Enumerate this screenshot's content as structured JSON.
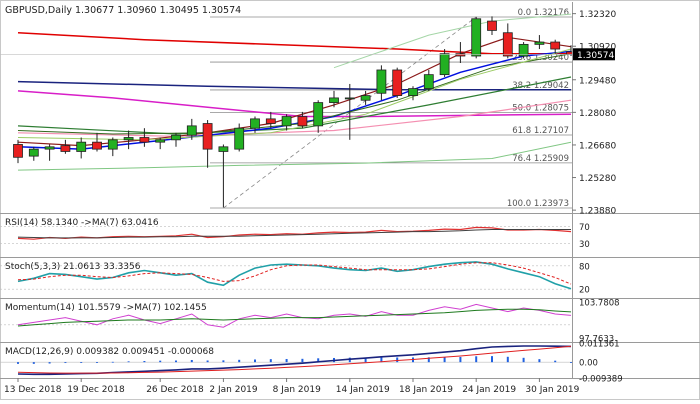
{
  "chart_data": {
    "type": "candlestick",
    "instrument": "GBPUSD,Daily",
    "header_ohlc": "1.30677 1.30960 1.30495 1.30574",
    "price_axis": {
      "ylim": [
        1.238,
        1.3282
      ],
      "ticks": [
        "1.32320",
        "1.30920",
        "1.29480",
        "1.28080",
        "1.26680",
        "1.25280",
        "1.23880"
      ],
      "current_price": "1.30574"
    },
    "x_labels": [
      "13 Dec 2018",
      "19 Dec 2018",
      "26 Dec 2018",
      "2 Jan 2019",
      "8 Jan 2019",
      "14 Jan 2019",
      "18 Jan 2019",
      "24 Jan 2019",
      "30 Jan 2019"
    ],
    "x_label_index": [
      0,
      4,
      9,
      13,
      17,
      21,
      25,
      29,
      33
    ],
    "candles": [
      {
        "o": 1.267,
        "h": 1.269,
        "l": 1.259,
        "c": 1.2615
      },
      {
        "o": 1.262,
        "h": 1.266,
        "l": 1.26,
        "c": 1.265
      },
      {
        "o": 1.265,
        "h": 1.267,
        "l": 1.26,
        "c": 1.266
      },
      {
        "o": 1.2665,
        "h": 1.269,
        "l": 1.263,
        "c": 1.264
      },
      {
        "o": 1.264,
        "h": 1.27,
        "l": 1.261,
        "c": 1.268
      },
      {
        "o": 1.268,
        "h": 1.272,
        "l": 1.264,
        "c": 1.265
      },
      {
        "o": 1.265,
        "h": 1.27,
        "l": 1.262,
        "c": 1.269
      },
      {
        "o": 1.269,
        "h": 1.273,
        "l": 1.265,
        "c": 1.27
      },
      {
        "o": 1.27,
        "h": 1.274,
        "l": 1.266,
        "c": 1.268
      },
      {
        "o": 1.268,
        "h": 1.27,
        "l": 1.265,
        "c": 1.269
      },
      {
        "o": 1.269,
        "h": 1.272,
        "l": 1.266,
        "c": 1.271
      },
      {
        "o": 1.271,
        "h": 1.278,
        "l": 1.269,
        "c": 1.275
      },
      {
        "o": 1.276,
        "h": 1.2775,
        "l": 1.257,
        "c": 1.265
      },
      {
        "o": 1.264,
        "h": 1.267,
        "l": 1.24,
        "c": 1.266
      },
      {
        "o": 1.265,
        "h": 1.276,
        "l": 1.264,
        "c": 1.274
      },
      {
        "o": 1.274,
        "h": 1.279,
        "l": 1.272,
        "c": 1.278
      },
      {
        "o": 1.278,
        "h": 1.281,
        "l": 1.274,
        "c": 1.276
      },
      {
        "o": 1.275,
        "h": 1.28,
        "l": 1.273,
        "c": 1.279
      },
      {
        "o": 1.279,
        "h": 1.281,
        "l": 1.274,
        "c": 1.275
      },
      {
        "o": 1.275,
        "h": 1.286,
        "l": 1.272,
        "c": 1.285
      },
      {
        "o": 1.285,
        "h": 1.29,
        "l": 1.283,
        "c": 1.287
      },
      {
        "o": 1.287,
        "h": 1.293,
        "l": 1.269,
        "c": 1.287
      },
      {
        "o": 1.286,
        "h": 1.29,
        "l": 1.284,
        "c": 1.288
      },
      {
        "o": 1.289,
        "h": 1.301,
        "l": 1.286,
        "c": 1.299
      },
      {
        "o": 1.299,
        "h": 1.3,
        "l": 1.287,
        "c": 1.288
      },
      {
        "o": 1.288,
        "h": 1.292,
        "l": 1.286,
        "c": 1.291
      },
      {
        "o": 1.291,
        "h": 1.299,
        "l": 1.29,
        "c": 1.297
      },
      {
        "o": 1.297,
        "h": 1.308,
        "l": 1.296,
        "c": 1.306
      },
      {
        "o": 1.306,
        "h": 1.311,
        "l": 1.302,
        "c": 1.305
      },
      {
        "o": 1.305,
        "h": 1.3218,
        "l": 1.304,
        "c": 1.321
      },
      {
        "o": 1.32,
        "h": 1.322,
        "l": 1.314,
        "c": 1.316
      },
      {
        "o": 1.315,
        "h": 1.319,
        "l": 1.304,
        "c": 1.305
      },
      {
        "o": 1.305,
        "h": 1.311,
        "l": 1.304,
        "c": 1.31
      },
      {
        "o": 1.31,
        "h": 1.314,
        "l": 1.308,
        "c": 1.311
      },
      {
        "o": 1.311,
        "h": 1.312,
        "l": 1.306,
        "c": 1.308
      },
      {
        "o": 1.3068,
        "h": 1.3096,
        "l": 1.305,
        "c": 1.3057
      }
    ],
    "lines": [
      {
        "name": "ma-red-long",
        "color": "#e00000",
        "width": 1.5,
        "points": [
          [
            0,
            1.315
          ],
          [
            8,
            1.312
          ],
          [
            16,
            1.31
          ],
          [
            24,
            1.308
          ],
          [
            30,
            1.306
          ],
          [
            35,
            1.306
          ]
        ]
      },
      {
        "name": "ma-navy",
        "color": "#1a237e",
        "width": 1.5,
        "points": [
          [
            0,
            1.294
          ],
          [
            12,
            1.292
          ],
          [
            24,
            1.2905
          ],
          [
            35,
            1.2905
          ]
        ]
      },
      {
        "name": "ma-magenta",
        "color": "#d81ec8",
        "width": 1.5,
        "points": [
          [
            0,
            1.29
          ],
          [
            6,
            1.287
          ],
          [
            12,
            1.283
          ],
          [
            18,
            1.279
          ],
          [
            22,
            1.279
          ],
          [
            35,
            1.28
          ]
        ]
      },
      {
        "name": "ma-green",
        "color": "#2e7d32",
        "width": 1.2,
        "points": [
          [
            0,
            1.275
          ],
          [
            10,
            1.2715
          ],
          [
            18,
            1.274
          ],
          [
            26,
            1.284
          ],
          [
            35,
            1.296
          ]
        ]
      },
      {
        "name": "ma-pink",
        "color": "#f48fb1",
        "width": 1.2,
        "points": [
          [
            0,
            1.272
          ],
          [
            10,
            1.2705
          ],
          [
            20,
            1.273
          ],
          [
            28,
            1.279
          ],
          [
            35,
            1.286
          ]
        ]
      },
      {
        "name": "ma-lightgreen",
        "color": "#81c784",
        "width": 1.0,
        "points": [
          [
            0,
            1.256
          ],
          [
            8,
            1.257
          ],
          [
            14,
            1.258
          ],
          [
            22,
            1.259
          ],
          [
            30,
            1.261
          ],
          [
            35,
            1.268
          ]
        ]
      },
      {
        "name": "ma-blue",
        "color": "#0010e0",
        "width": 1.5,
        "points": [
          [
            0,
            1.266
          ],
          [
            4,
            1.265
          ],
          [
            8,
            1.268
          ],
          [
            12,
            1.271
          ],
          [
            16,
            1.274
          ],
          [
            20,
            1.279
          ],
          [
            24,
            1.288
          ],
          [
            28,
            1.298
          ],
          [
            32,
            1.305
          ],
          [
            35,
            1.307
          ]
        ]
      },
      {
        "name": "ma-darkred",
        "color": "#8b1a1a",
        "width": 1.2,
        "points": [
          [
            0,
            1.268
          ],
          [
            4,
            1.2665
          ],
          [
            8,
            1.269
          ],
          [
            12,
            1.272
          ],
          [
            16,
            1.276
          ],
          [
            20,
            1.284
          ],
          [
            24,
            1.293
          ],
          [
            28,
            1.306
          ],
          [
            31,
            1.313
          ],
          [
            35,
            1.309
          ]
        ]
      },
      {
        "name": "ma-olive",
        "color": "#33691e",
        "width": 1.0,
        "points": [
          [
            0,
            1.273
          ],
          [
            6,
            1.2715
          ],
          [
            12,
            1.272
          ],
          [
            18,
            1.276
          ],
          [
            24,
            1.286
          ],
          [
            30,
            1.3
          ],
          [
            35,
            1.306
          ]
        ]
      },
      {
        "name": "ma-lime",
        "color": "#9ccc65",
        "width": 1.0,
        "points": [
          [
            0,
            1.27
          ],
          [
            8,
            1.269
          ],
          [
            16,
            1.272
          ],
          [
            22,
            1.28
          ],
          [
            28,
            1.295
          ],
          [
            35,
            1.308
          ]
        ]
      },
      {
        "name": "bollinger-upper",
        "color": "#a5d6a7",
        "width": 1.0,
        "points": [
          [
            20,
            1.3
          ],
          [
            26,
            1.314
          ],
          [
            30,
            1.32
          ],
          [
            35,
            1.323
          ]
        ]
      }
    ],
    "fibonacci": [
      {
        "label": "0.0 1.32176",
        "value": 1.32176
      },
      {
        "label": "23.6 1.30240",
        "value": 1.3024
      },
      {
        "label": "38.2 1.29042",
        "value": 1.29042
      },
      {
        "label": "50.0 1.28075",
        "value": 1.28075
      },
      {
        "label": "61.8 1.27107",
        "value": 1.27107
      },
      {
        "label": "76.4 1.25909",
        "value": 1.25909
      },
      {
        "label": "100.0 1.23973",
        "value": 1.23973
      }
    ],
    "fib_anchor_start": [
      13,
      1.2397
    ],
    "fib_anchor_end": [
      29,
      1.3218
    ],
    "rsi": {
      "label": "RSI(14) 58.1340 ->MA(7) 63.0416",
      "ticks": [
        "70",
        "30"
      ],
      "ylim": [
        0,
        100
      ],
      "rsi_values": [
        42,
        40,
        44,
        42,
        45,
        43,
        46,
        47,
        46,
        47,
        48,
        52,
        44,
        46,
        50,
        52,
        51,
        53,
        52,
        55,
        57,
        56,
        57,
        61,
        58,
        59,
        61,
        64,
        63,
        68,
        67,
        62,
        62,
        63,
        61,
        58
      ],
      "ma_values": [
        45,
        44,
        43,
        43,
        43,
        43,
        44,
        45,
        45,
        46,
        46,
        47,
        47,
        47,
        47,
        48,
        49,
        50,
        51,
        52,
        53,
        54,
        55,
        56,
        57,
        58,
        58,
        59,
        60,
        62,
        63,
        63,
        63,
        63,
        63,
        63
      ]
    },
    "stoch": {
      "label": "Stoch(5,3,3) 21.0613 33.3356",
      "ticks": [
        "80",
        "20"
      ],
      "ylim": [
        0,
        100
      ],
      "k_values": [
        40,
        48,
        60,
        58,
        52,
        46,
        50,
        62,
        68,
        62,
        56,
        60,
        38,
        30,
        56,
        74,
        82,
        84,
        82,
        80,
        74,
        70,
        68,
        74,
        66,
        70,
        78,
        84,
        88,
        90,
        84,
        72,
        62,
        52,
        34,
        21
      ],
      "d_values": [
        44,
        46,
        52,
        56,
        56,
        52,
        50,
        54,
        60,
        62,
        60,
        58,
        50,
        40,
        42,
        54,
        70,
        80,
        82,
        82,
        78,
        74,
        70,
        70,
        70,
        70,
        72,
        78,
        84,
        88,
        88,
        82,
        74,
        62,
        50,
        33
      ]
    },
    "momentum": {
      "label": "Momentum(14) 101.5579 ->MA(7) 102.1455",
      "ticks": [
        "103.7808",
        "97.7633"
      ],
      "ylim": [
        97.3,
        104.3
      ],
      "mom_values": [
        100.0,
        100.4,
        100.8,
        101.2,
        100.6,
        100.0,
        101.0,
        101.6,
        100.8,
        100.2,
        101.0,
        101.8,
        100.0,
        99.6,
        101.0,
        101.6,
        101.2,
        101.8,
        101.2,
        101.0,
        101.6,
        101.8,
        101.4,
        102.2,
        101.6,
        101.6,
        102.4,
        103.0,
        102.6,
        103.4,
        102.8,
        102.2,
        102.8,
        102.4,
        101.8,
        101.56
      ],
      "ma_values": [
        99.8,
        100.0,
        100.2,
        100.4,
        100.5,
        100.6,
        100.7,
        100.8,
        100.8,
        100.8,
        100.9,
        101.0,
        100.9,
        100.8,
        100.9,
        101.0,
        101.1,
        101.2,
        101.2,
        101.2,
        101.3,
        101.4,
        101.5,
        101.6,
        101.7,
        101.8,
        101.9,
        102.0,
        102.2,
        102.4,
        102.5,
        102.6,
        102.6,
        102.5,
        102.3,
        102.15
      ]
    },
    "macd": {
      "label": "MACD(12,26,9) 0.009382 0.009451 -0.000068",
      "ticks": [
        "0.011361",
        "0.00",
        "-0.009389"
      ],
      "ylim": [
        -0.0094,
        0.0114
      ],
      "macd_values": [
        -0.007,
        -0.0072,
        -0.0072,
        -0.007,
        -0.0068,
        -0.0066,
        -0.0062,
        -0.0058,
        -0.0054,
        -0.005,
        -0.0046,
        -0.004,
        -0.004,
        -0.0036,
        -0.003,
        -0.0024,
        -0.0018,
        -0.0012,
        -0.0006,
        0.0002,
        0.001,
        0.0018,
        0.0024,
        0.0032,
        0.0038,
        0.0044,
        0.0052,
        0.006,
        0.0068,
        0.008,
        0.009,
        0.0094,
        0.0096,
        0.0096,
        0.0095,
        0.0094
      ],
      "signal_values": [
        -0.006,
        -0.0062,
        -0.0064,
        -0.0065,
        -0.0065,
        -0.0065,
        -0.0064,
        -0.0063,
        -0.0061,
        -0.0059,
        -0.0056,
        -0.0053,
        -0.005,
        -0.0047,
        -0.0044,
        -0.004,
        -0.0036,
        -0.0031,
        -0.0026,
        -0.0021,
        -0.0015,
        -0.0009,
        -0.0003,
        0.0003,
        0.001,
        0.0016,
        0.0023,
        0.003,
        0.0037,
        0.0045,
        0.0054,
        0.0062,
        0.007,
        0.0078,
        0.0086,
        0.0095
      ],
      "hist_values": [
        -0.001,
        -0.001,
        -0.0008,
        -0.0005,
        -0.0003,
        -0.0001,
        0.0002,
        0.0005,
        0.0007,
        0.0009,
        0.001,
        0.0013,
        0.001,
        0.0011,
        0.0014,
        0.0016,
        0.0018,
        0.0019,
        0.002,
        0.0023,
        0.0025,
        0.0027,
        0.0027,
        0.0029,
        0.0028,
        0.0028,
        0.0029,
        0.003,
        0.0031,
        0.0035,
        0.0036,
        0.0032,
        0.0026,
        0.0018,
        0.0009,
        -0.0001
      ]
    },
    "colors": {
      "bull": "#22b022",
      "bear": "#e82020",
      "fib": "#8c8c8c",
      "rsi": "#e03030",
      "rsi_ma": "#404040",
      "stoch_k": "#20a0a8",
      "stoch_d": "#e02020",
      "mom": "#d040d0",
      "mom_ma": "#1e7a1e",
      "macd": "#1a237e",
      "macd_signal": "#e02020",
      "macd_hist": "#2060e0"
    }
  }
}
